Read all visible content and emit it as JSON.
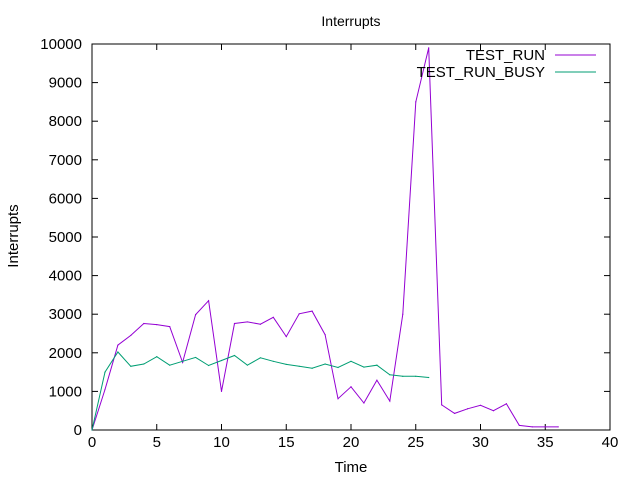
{
  "chart_data": {
    "type": "line",
    "title": "Interrupts",
    "xlabel": "Time",
    "ylabel": "Interrupts",
    "xlim": [
      0,
      40
    ],
    "ylim": [
      0,
      10000
    ],
    "x_ticks": [
      0,
      5,
      10,
      15,
      20,
      25,
      30,
      35,
      40
    ],
    "y_ticks": [
      0,
      1000,
      2000,
      3000,
      4000,
      5000,
      6000,
      7000,
      8000,
      9000,
      10000
    ],
    "grid": false,
    "legend_position": "top-right",
    "series": [
      {
        "name": "TEST_RUN",
        "color": "#9400d3",
        "x": [
          0,
          1,
          2,
          3,
          4,
          5,
          6,
          7,
          8,
          9,
          10,
          11,
          12,
          13,
          14,
          15,
          16,
          17,
          18,
          19,
          20,
          21,
          22,
          23,
          24,
          25,
          26,
          27,
          28,
          29,
          30,
          31,
          32,
          33,
          34,
          35,
          36
        ],
        "y": [
          0,
          1050,
          2200,
          2450,
          2760,
          2730,
          2680,
          1750,
          2990,
          3350,
          1000,
          2760,
          2800,
          2740,
          2920,
          2420,
          3010,
          3080,
          2470,
          810,
          1120,
          700,
          1290,
          750,
          3000,
          8500,
          9900,
          650,
          430,
          550,
          640,
          500,
          680,
          120,
          80,
          80,
          80
        ]
      },
      {
        "name": "TEST_RUN_BUSY",
        "color": "#009e73",
        "x": [
          0,
          1,
          2,
          3,
          4,
          5,
          6,
          7,
          8,
          9,
          10,
          11,
          12,
          13,
          14,
          15,
          16,
          17,
          18,
          19,
          20,
          21,
          22,
          23,
          24,
          25,
          26
        ],
        "y": [
          0,
          1500,
          2020,
          1650,
          1710,
          1900,
          1680,
          1780,
          1880,
          1670,
          1800,
          1930,
          1680,
          1870,
          1780,
          1700,
          1650,
          1600,
          1710,
          1620,
          1780,
          1630,
          1680,
          1430,
          1390,
          1390,
          1360
        ]
      }
    ]
  }
}
